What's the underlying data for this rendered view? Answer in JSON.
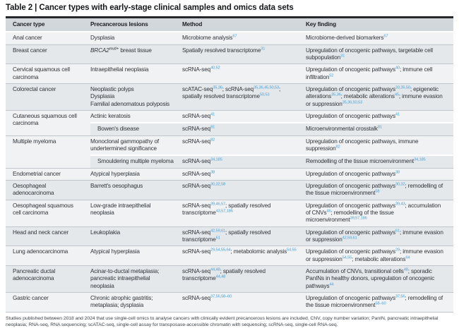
{
  "title": "Table 2 | Cancer types with early-stage clinical samples and omics data sets",
  "colors": {
    "header_bg": "#d2d7db",
    "row_light": "#f0f2f4",
    "row_dark": "#e4e8eb",
    "citation": "#4aa2d9",
    "rule": "#c0c6cc",
    "top_rule": "#26292c",
    "text": "#303438"
  },
  "table": {
    "columns": [
      "Cancer type",
      "Precancerous lesions",
      "Method",
      "Key finding"
    ],
    "groups": [
      {
        "cancer_type": "Anal cancer",
        "rows": [
          {
            "lesions": "Dysplasia",
            "method": "Microbiome analysis^{67}",
            "finding": "Microbiome-derived biomarkers^{67}"
          }
        ]
      },
      {
        "cancer_type": "Breast cancer",
        "rows": [
          {
            "lesions": "*BRCA2*^{mut/+} breast tissue",
            "method": "Spatially resolved transcriptome^{31}",
            "finding": "Upregulation of oncogenic pathways, targetable cell subpopulation^{31}"
          }
        ]
      },
      {
        "cancer_type": "Cervical squamous cell carcinoma",
        "rows": [
          {
            "lesions": "Intraepithelial neoplasia",
            "method": "scRNA-seq^{40,52}",
            "finding": "Upregulation of oncogenic pathways^{40}; immune cell infiltration^{52}"
          }
        ]
      },
      {
        "cancer_type": "Colorectal cancer",
        "rows": [
          {
            "lesions": "Neoplastic polyps\nDysplasia\nFamilial adenomatous polyposis",
            "method": "scATAC-seq^{35,36}; scRNA-seq^{35,36,45,50,53}; spatially resolved transcriptome^{50,53}",
            "finding": "Upregulation of oncogenic pathways^{33,35,50}; epigenetic alterations^{35,36}; metabolic alterations^{45}; immune evasion or suppression^{35,36,50,53}"
          }
        ]
      },
      {
        "cancer_type": "Cutaneous squamous cell carcinoma",
        "rows": [
          {
            "lesions": "Actinic keratosis",
            "method": "scRNA-seq^{41}",
            "finding": "Upregulation of oncogenic pathways^{41}"
          },
          {
            "lesions": "Bowen's disease",
            "method": "scRNA-seq^{81}",
            "finding": "Microenvironmental crosstalk^{81}"
          }
        ]
      },
      {
        "cancer_type": "Multiple myeloma",
        "rows": [
          {
            "lesions": "Monoclonal gammopathy of undertermined significance",
            "method": "scRNA-seq^{82}",
            "finding": "Upregulation of oncogenic pathways, immune suppression^{82}"
          },
          {
            "lesions": "Smouldering multiple myeloma",
            "method": "scRNA-seq^{34,185}",
            "finding": "Remodelling of the tissue microenvironment^{34,185}"
          }
        ]
      },
      {
        "cancer_type": "Endometrial cancer",
        "rows": [
          {
            "lesions": "Atypical hyperplasia",
            "method": "scRNA-seq^{38}",
            "finding": "Upregulation of oncogenic pathways^{38}"
          }
        ]
      },
      {
        "cancer_type": "Oesophageal adenocarcinoma",
        "rows": [
          {
            "lesions": "Barrett's oesophagus",
            "method": "scRNA-seq^{30,32,58}",
            "finding": "Upregulation of oncogenic pathways^{30,32}; remodelling of the tissue microenvironment^{58}"
          }
        ]
      },
      {
        "cancer_type": "Oesophageal squamous cell carcinoma",
        "rows": [
          {
            "lesions": "Low-grade intraepithelial neoplasia",
            "method": "scRNA-seq^{39,46,57}; spatially resolved transcriptome^{43,57,186}",
            "finding": "Upregulation of oncogenic pathways^{39,43}; accumulation of CNVs^{46}; remodelling of the tissue microenvironment^{39,57,186}"
          }
        ]
      },
      {
        "cancer_type": "Head and neck cancer",
        "rows": [
          {
            "lesions": "Leukoplakia",
            "method": "scRNA-seq^{42,59,61}; spatially resolved transcriptome^{61}",
            "finding": "Upregulation of oncogenic pathways^{61}; immune evasion or suppression^{42,59,61}"
          }
        ]
      },
      {
        "cancer_type": "Lung adenocarcinoma",
        "rows": [
          {
            "lesions": "Atypical hyperplasia",
            "method": "scRNA-seq^{29,54,55,64}; metabolomic analysis^{54,55}",
            "finding": "Upregulation of oncogenic pathways^{29}; immune evasion or suppression^{54,55}; metabolic alterations^{64}"
          }
        ]
      },
      {
        "cancer_type": "Pancreatic ductal adenocarcinoma",
        "rows": [
          {
            "lesions": "Acinar-to-ductal metaplasia; pancreatic intraepithelial neoplasia",
            "method": "scRNA-seq^{44,48}; spatially resolved transcriptome^{44,48}",
            "finding": "Accumulation of CNVs, transitional cells^{48}; sporadic PanINs in healthy donors, upregulation of oncogenic pathways^{44}"
          }
        ]
      },
      {
        "cancer_type": "Gastric cancer",
        "rows": [
          {
            "lesions": "Chronic atrophic gastritis; metaplasia; dysplasia",
            "method": "scRNA-seq^{37,56,58–60}",
            "finding": "Upregulation of oncogenic pathways^{37,56}; remodelling of the tissue microenvironment^{58–60}"
          }
        ]
      }
    ]
  },
  "footnote": "Studies published between 2018 and 2024 that use single-cell omics to analyse cancers with clinically evident precancerous lesions are included. CNV, copy number variation; PanIN, pancreatic intraepithelial neoplasia; RNA-seq, RNA sequencing; scATAC-seq, single-cell assay for transposase-accessible chromatin with sequencing; scRNA-seq, single-cell RNA-seq."
}
